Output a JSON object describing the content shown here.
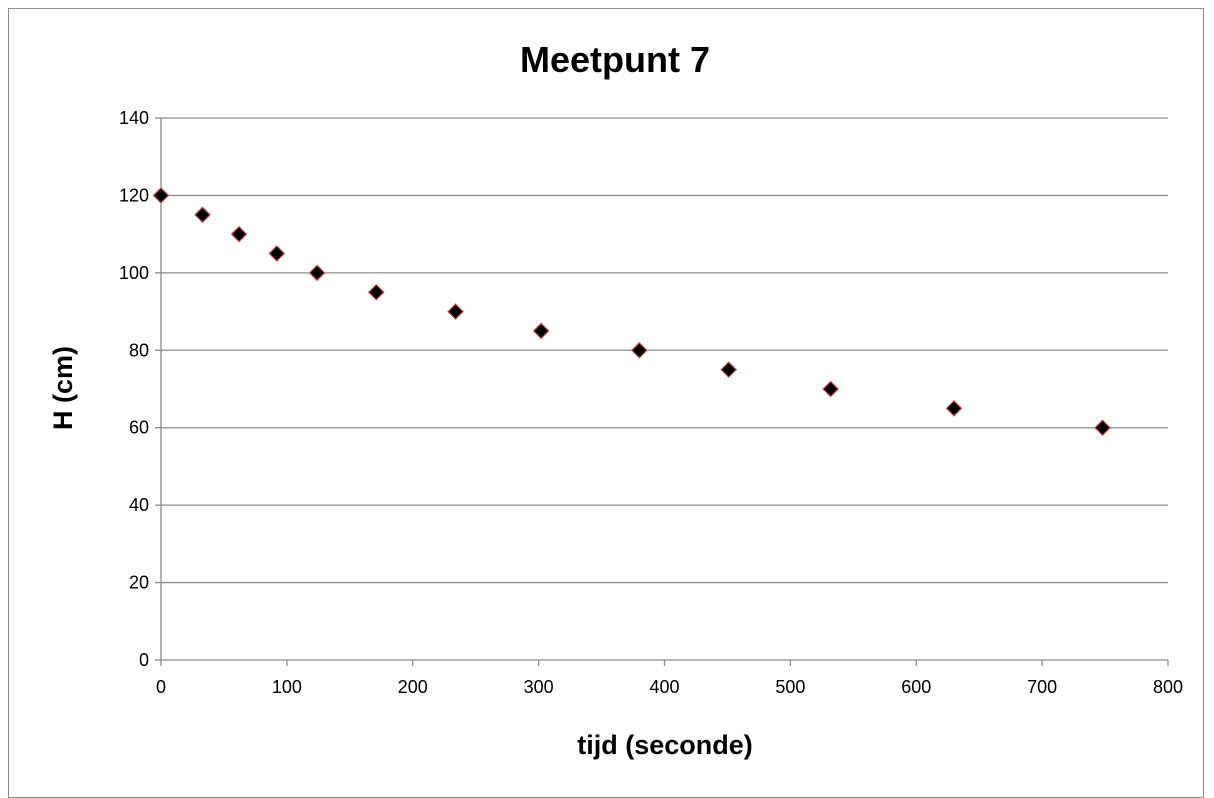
{
  "chart_data": {
    "type": "scatter",
    "title": "Meetpunt 7",
    "xlabel": "tijd (seconde)",
    "ylabel": "H (cm)",
    "xlim": [
      0,
      800
    ],
    "ylim": [
      0,
      140
    ],
    "x_ticks": [
      0,
      100,
      200,
      300,
      400,
      500,
      600,
      700,
      800
    ],
    "y_ticks": [
      0,
      20,
      40,
      60,
      80,
      100,
      120,
      140
    ],
    "grid": "horizontal",
    "legend": "none",
    "marker": "diamond",
    "marker_fill": "#000000",
    "marker_edge": "#c0504d",
    "gridline_color": "#8c8c8c",
    "series": [
      {
        "points": [
          {
            "x": 0,
            "y": 120
          },
          {
            "x": 33,
            "y": 115
          },
          {
            "x": 62,
            "y": 110
          },
          {
            "x": 92,
            "y": 105
          },
          {
            "x": 124,
            "y": 100
          },
          {
            "x": 171,
            "y": 95
          },
          {
            "x": 234,
            "y": 90
          },
          {
            "x": 302,
            "y": 85
          },
          {
            "x": 380,
            "y": 80
          },
          {
            "x": 451,
            "y": 75
          },
          {
            "x": 532,
            "y": 70
          },
          {
            "x": 630,
            "y": 65
          },
          {
            "x": 748,
            "y": 60
          }
        ]
      }
    ]
  }
}
